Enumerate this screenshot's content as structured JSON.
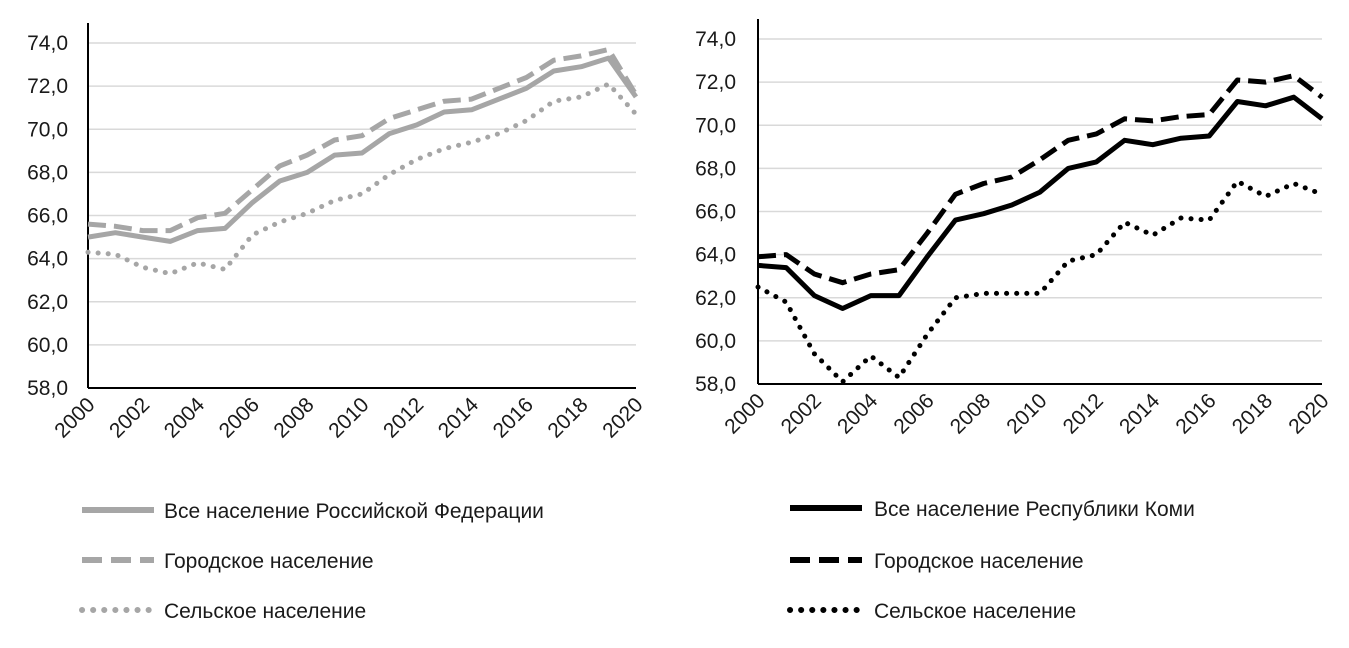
{
  "chart_data": [
    {
      "type": "line",
      "title": "",
      "xlabel": "",
      "ylabel": "",
      "ylim": [
        58,
        74
      ],
      "grid": true,
      "legend_position": "bottom",
      "y_ticks": [
        "58,0",
        "60,0",
        "62,0",
        "64,0",
        "66,0",
        "68,0",
        "70,0",
        "72,0",
        "74,0"
      ],
      "x": [
        2000,
        2001,
        2002,
        2003,
        2004,
        2005,
        2006,
        2007,
        2008,
        2009,
        2010,
        2011,
        2012,
        2013,
        2014,
        2015,
        2016,
        2017,
        2018,
        2019,
        2020
      ],
      "x_ticks": [
        "2000",
        "2002",
        "2004",
        "2006",
        "2008",
        "2010",
        "2012",
        "2014",
        "2016",
        "2018",
        "2020"
      ],
      "series": [
        {
          "name": "Все население Российской Федерации",
          "style": "solid",
          "color": "#a6a6a6",
          "values": [
            65.0,
            65.2,
            65.0,
            64.8,
            65.3,
            65.4,
            66.6,
            67.6,
            68.0,
            68.8,
            68.9,
            69.8,
            70.2,
            70.8,
            70.9,
            71.4,
            71.9,
            72.7,
            72.9,
            73.3,
            71.5
          ]
        },
        {
          "name": "Городское население",
          "style": "dashed",
          "color": "#a6a6a6",
          "values": [
            65.6,
            65.5,
            65.3,
            65.3,
            65.9,
            66.1,
            67.2,
            68.3,
            68.8,
            69.5,
            69.7,
            70.5,
            70.9,
            71.3,
            71.4,
            71.9,
            72.4,
            73.2,
            73.4,
            73.7,
            71.6
          ]
        },
        {
          "name": "Сельское население",
          "style": "dotted",
          "color": "#a6a6a6",
          "values": [
            64.3,
            64.2,
            63.6,
            63.3,
            63.8,
            63.5,
            65.1,
            65.7,
            66.1,
            66.7,
            67.0,
            67.9,
            68.6,
            69.1,
            69.4,
            69.8,
            70.4,
            71.3,
            71.5,
            72.1,
            70.7
          ]
        }
      ]
    },
    {
      "type": "line",
      "title": "",
      "xlabel": "",
      "ylabel": "",
      "ylim": [
        58,
        74
      ],
      "grid": true,
      "legend_position": "bottom",
      "y_ticks": [
        "58,0",
        "60,0",
        "62,0",
        "64,0",
        "66,0",
        "68,0",
        "70,0",
        "72,0",
        "74,0"
      ],
      "x": [
        2000,
        2001,
        2002,
        2003,
        2004,
        2005,
        2006,
        2007,
        2008,
        2009,
        2010,
        2011,
        2012,
        2013,
        2014,
        2015,
        2016,
        2017,
        2018,
        2019,
        2020
      ],
      "x_ticks": [
        "2000",
        "2002",
        "2004",
        "2006",
        "2008",
        "2010",
        "2012",
        "2014",
        "2016",
        "2018",
        "2020"
      ],
      "series": [
        {
          "name": "Все население Республики Коми",
          "style": "solid",
          "color": "#000000",
          "values": [
            63.5,
            63.4,
            62.1,
            61.5,
            62.1,
            62.1,
            63.9,
            65.6,
            65.9,
            66.3,
            66.9,
            68.0,
            68.3,
            69.3,
            69.1,
            69.4,
            69.5,
            71.1,
            70.9,
            71.3,
            70.3
          ]
        },
        {
          "name": "Городское население",
          "style": "dashed",
          "color": "#000000",
          "values": [
            63.9,
            64.0,
            63.1,
            62.7,
            63.1,
            63.3,
            65.0,
            66.8,
            67.3,
            67.6,
            68.4,
            69.3,
            69.6,
            70.3,
            70.2,
            70.4,
            70.5,
            72.1,
            72.0,
            72.3,
            71.3
          ]
        },
        {
          "name": "Сельское население",
          "style": "dotted",
          "color": "#000000",
          "values": [
            62.5,
            61.8,
            59.4,
            58.1,
            59.3,
            58.3,
            60.3,
            62.0,
            62.2,
            62.2,
            62.2,
            63.7,
            64.0,
            65.5,
            64.9,
            65.7,
            65.6,
            67.4,
            66.7,
            67.3,
            66.8
          ]
        }
      ]
    }
  ]
}
